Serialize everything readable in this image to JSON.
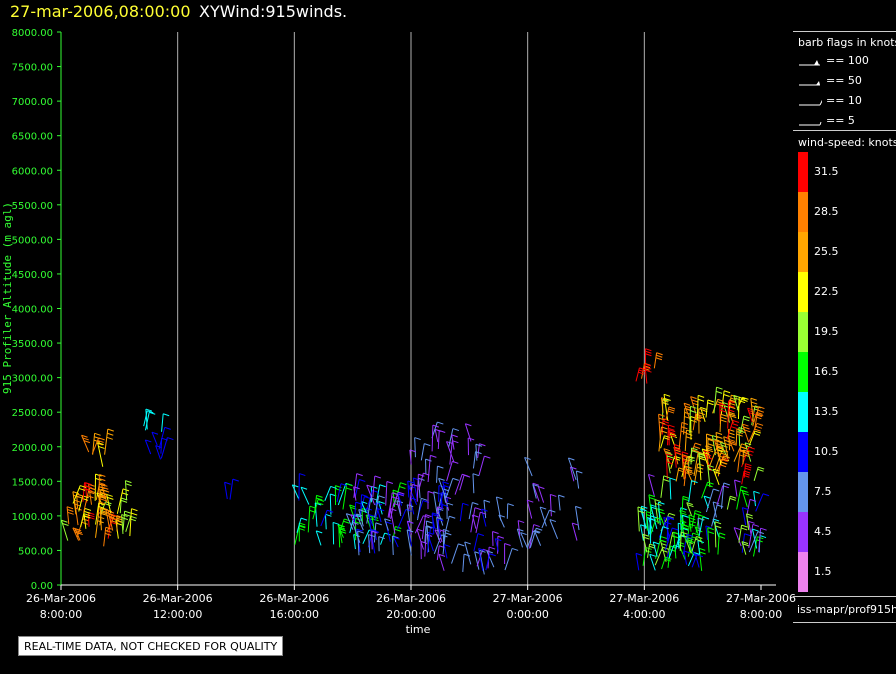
{
  "header": {
    "date_title": "27-mar-2006,08:00:00",
    "product_title": "XYWind:915winds."
  },
  "notice": "REAL-TIME DATA, NOT CHECKED FOR QUALITY",
  "legend": {
    "flags_title": "barb flags in knots",
    "flags": [
      {
        "label": "== 100",
        "icon": "flag-100-icon"
      },
      {
        "label": "== 50",
        "icon": "flag-50-icon"
      },
      {
        "label": "== 10",
        "icon": "barb-10-icon"
      },
      {
        "label": "== 5",
        "icon": "barb-5-icon"
      }
    ],
    "speed_title": "wind-speed: knots",
    "speed_bins": [
      {
        "label": "31.5",
        "color": "#ff0000"
      },
      {
        "label": "28.5",
        "color": "#ff8000"
      },
      {
        "label": "25.5",
        "color": "#ffa500"
      },
      {
        "label": "22.5",
        "color": "#ffff00"
      },
      {
        "label": "19.5",
        "color": "#99ff33"
      },
      {
        "label": "16.5",
        "color": "#00ff00"
      },
      {
        "label": "13.5",
        "color": "#00ffff"
      },
      {
        "label": "10.5",
        "color": "#0000ff"
      },
      {
        "label": "7.5",
        "color": "#6495ed"
      },
      {
        "label": "4.5",
        "color": "#9933ff"
      },
      {
        "label": "1.5",
        "color": "#ee82ee"
      }
    ],
    "footer": "iss-mapr/prof915h"
  },
  "chart_data": {
    "type": "scatter",
    "title": "XYWind:915winds.",
    "xlabel": "time",
    "ylabel": "915 Profiler Altitude (m agl)",
    "ylim": [
      0,
      8000
    ],
    "xlim_hours": [
      0,
      24
    ],
    "grid": "vertical lines at each time tick",
    "yticks": [
      "0.00",
      "500.00",
      "1000.00",
      "1500.00",
      "2000.00",
      "2500.00",
      "3000.00",
      "3500.00",
      "4000.00",
      "4500.00",
      "5000.00",
      "5500.00",
      "6000.00",
      "6500.00",
      "7000.00",
      "7500.00",
      "8000.00"
    ],
    "xticks": [
      {
        "line1": "26-Mar-2006",
        "line2": "8:00:00"
      },
      {
        "line1": "26-Mar-2006",
        "line2": "12:00:00"
      },
      {
        "line1": "26-Mar-2006",
        "line2": "16:00:00"
      },
      {
        "line1": "26-Mar-2006",
        "line2": "20:00:00"
      },
      {
        "line1": "27-Mar-2006",
        "line2": "0:00:00"
      },
      {
        "line1": "27-Mar-2006",
        "line2": "4:00:00"
      },
      {
        "line1": "27-Mar-2006",
        "line2": "8:00:00"
      }
    ],
    "series": [
      {
        "t0": 0.0,
        "t1": 2.4,
        "alt_min": 550,
        "alt_max": 1250,
        "speed_min": 19,
        "speed_max": 32,
        "count": 45
      },
      {
        "t0": 0.9,
        "t1": 1.5,
        "alt_min": 1650,
        "alt_max": 1950,
        "speed_min": 23,
        "speed_max": 29,
        "count": 5
      },
      {
        "t0": 2.8,
        "t1": 3.6,
        "alt_min": 1750,
        "alt_max": 2050,
        "speed_min": 10,
        "speed_max": 12,
        "count": 6
      },
      {
        "t0": 2.8,
        "t1": 3.6,
        "alt_min": 2150,
        "alt_max": 2300,
        "speed_min": 13,
        "speed_max": 15,
        "count": 4
      },
      {
        "t0": 5.6,
        "t1": 5.8,
        "alt_min": 1000,
        "alt_max": 1350,
        "speed_min": 9,
        "speed_max": 11,
        "count": 2
      },
      {
        "t0": 8.0,
        "t1": 11.5,
        "alt_min": 500,
        "alt_max": 1300,
        "speed_min": 11,
        "speed_max": 18,
        "count": 45
      },
      {
        "t0": 10.0,
        "t1": 13.3,
        "alt_min": 350,
        "alt_max": 1300,
        "speed_min": 3,
        "speed_max": 12,
        "count": 85
      },
      {
        "t0": 12.0,
        "t1": 14.5,
        "alt_min": 1300,
        "alt_max": 2150,
        "speed_min": 3,
        "speed_max": 8,
        "count": 25
      },
      {
        "t0": 13.0,
        "t1": 15.4,
        "alt_min": 150,
        "alt_max": 1000,
        "speed_min": 3,
        "speed_max": 11,
        "count": 30
      },
      {
        "t0": 15.7,
        "t1": 17.8,
        "alt_min": 500,
        "alt_max": 1700,
        "speed_min": 3,
        "speed_max": 8,
        "count": 22
      },
      {
        "t0": 19.8,
        "t1": 22.0,
        "alt_min": 200,
        "alt_max": 900,
        "speed_min": 9,
        "speed_max": 20,
        "count": 55
      },
      {
        "t0": 19.5,
        "t1": 20.4,
        "alt_min": 2900,
        "alt_max": 3200,
        "speed_min": 28,
        "speed_max": 33,
        "count": 5
      },
      {
        "t0": 20.5,
        "t1": 23.8,
        "alt_min": 1400,
        "alt_max": 2550,
        "speed_min": 19,
        "speed_max": 33,
        "count": 95
      },
      {
        "t0": 20.2,
        "t1": 24.0,
        "alt_min": 400,
        "alt_max": 1300,
        "speed_min": 4,
        "speed_max": 19,
        "count": 50
      }
    ]
  }
}
